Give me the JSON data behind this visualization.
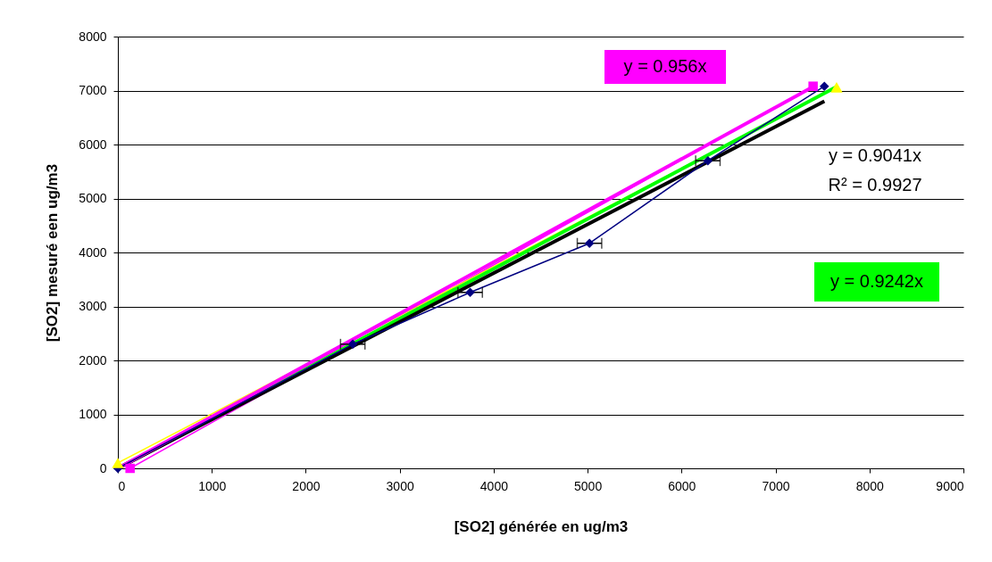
{
  "chart_data": {
    "type": "line",
    "xlabel": "[SO2] générée en ug/m3",
    "ylabel": "[SO2] mesuré een ug/m3",
    "xlim": [
      0,
      9000
    ],
    "xticks": [
      0,
      1000,
      2000,
      3000,
      4000,
      5000,
      6000,
      7000,
      8000,
      9000
    ],
    "ylim": [
      0,
      8000
    ],
    "yticks": [
      0,
      1000,
      2000,
      3000,
      4000,
      5000,
      6000,
      7000,
      8000
    ],
    "grid": "y",
    "series": [
      {
        "marker": "square",
        "color": "#ff00ff",
        "x": [
          130,
          7400
        ],
        "values": [
          0,
          7080
        ]
      },
      {
        "marker": "triangle",
        "color": "#ffff00",
        "x": [
          0,
          7650
        ],
        "values": [
          100,
          7060
        ]
      },
      {
        "marker": "none",
        "color": "#00ff00",
        "x": [
          0,
          7650
        ],
        "values": [
          0,
          7070
        ]
      },
      {
        "marker": "none",
        "color": "#000000",
        "x": [
          0,
          7520
        ],
        "values": [
          0,
          6800
        ]
      },
      {
        "marker": "none",
        "color": "#ff00ff",
        "x": [
          0,
          7400
        ],
        "values": [
          0,
          7070
        ]
      },
      {
        "marker": "diamond",
        "color": "#000080",
        "x": [
          0,
          2500,
          3750,
          5020,
          6280,
          7520
        ],
        "values": [
          0,
          2300,
          3260,
          4170,
          5700,
          7080
        ],
        "xerrors": [
          null,
          130,
          130,
          130,
          130,
          null
        ]
      }
    ],
    "annotations": [
      "y = 0.956x",
      "y = 0.9041x",
      "R² = 0.9927",
      "y = 0.9242x"
    ]
  }
}
